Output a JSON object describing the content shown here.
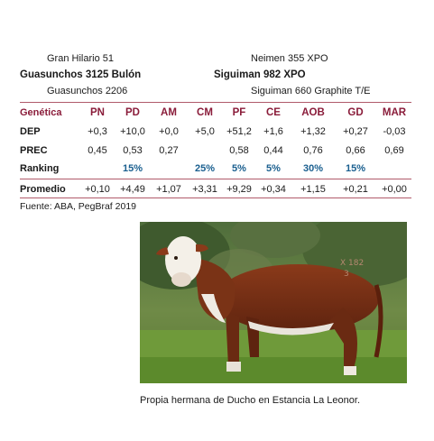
{
  "pedigree": {
    "left": {
      "sire": "Gran Hilario 51",
      "name": "Guasunchos 3125 Bulón",
      "dam": "Guasunchos 2206"
    },
    "right": {
      "sire": "Neimen 355 XPO",
      "name": "Siguiman 982 XPO",
      "dam": "Siguiman 660 Graphite T/E"
    }
  },
  "table": {
    "columns": [
      "Genética",
      "PN",
      "PD",
      "AM",
      "CM",
      "PF",
      "CE",
      "AOB",
      "GD",
      "MAR"
    ],
    "rows": [
      {
        "label": "DEP",
        "cells": [
          "+0,3",
          "+10,0",
          "+0,0",
          "+5,0",
          "+51,2",
          "+1,6",
          "+1,32",
          "+0,27",
          "-0,03"
        ]
      },
      {
        "label": "PREC",
        "cells": [
          "0,45",
          "0,53",
          "0,27",
          "",
          "0,58",
          "0,44",
          "0,76",
          "0,66",
          "0,69"
        ]
      },
      {
        "label": "Ranking",
        "cells": [
          "",
          "15%",
          "",
          "25%",
          "5%",
          "5%",
          "30%",
          "15%",
          ""
        ]
      }
    ],
    "promedio": {
      "label": "Promedio",
      "cells": [
        "+0,10",
        "+4,49",
        "+1,07",
        "+3,31",
        "+9,29",
        "+0,34",
        "+1,15",
        "+0,21",
        "+0,00"
      ]
    }
  },
  "colors": {
    "accent": "#8a1c3a",
    "ranking": "#1a5f8f",
    "rule": "#b05a6a"
  },
  "source": "Fuente: ABA, PegBraf 2019",
  "photo": {
    "subject": "hereford-heifer-photo"
  },
  "caption": "Propia hermana de Ducho en Estancia La Leonor."
}
